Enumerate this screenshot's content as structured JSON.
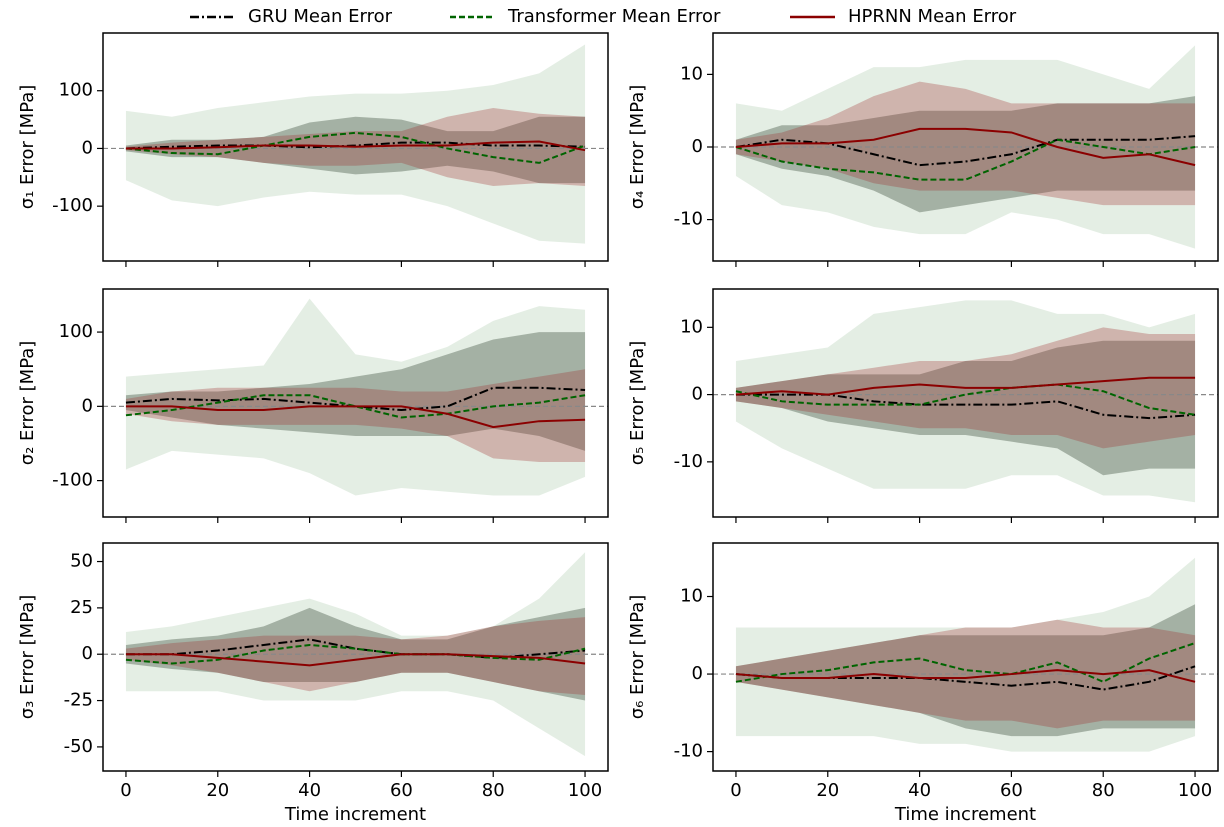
{
  "chart_data": [
    {
      "type": "line",
      "ylabel": "σ₁ Error [MPa]",
      "x": [
        0,
        10,
        20,
        30,
        40,
        50,
        60,
        70,
        80,
        90,
        100
      ],
      "xlim": [
        -5,
        105
      ],
      "xticks": [
        0,
        20,
        40,
        60,
        80,
        100
      ],
      "show_xtick_labels": false,
      "ylim": [
        -195,
        200
      ],
      "yticks": [
        -100,
        0,
        100
      ],
      "hline": 0,
      "series": [
        {
          "name": "GRU Mean Error",
          "color": "#000000",
          "dash": "dashdot",
          "band_color": "#2f3f2f",
          "band_alpha": 0.35,
          "values": [
            0,
            3,
            5,
            5,
            2,
            5,
            10,
            10,
            5,
            5,
            3
          ],
          "lower": [
            -5,
            -15,
            -15,
            -25,
            -35,
            -45,
            -40,
            -30,
            -40,
            -60,
            -60
          ],
          "upper": [
            5,
            15,
            15,
            20,
            45,
            55,
            50,
            30,
            30,
            55,
            55
          ]
        },
        {
          "name": "Transformer Mean Error",
          "color": "#006400",
          "dash": "dashed",
          "band_color": "#2e7d32",
          "band_alpha": 0.13,
          "values": [
            0,
            -8,
            -10,
            5,
            20,
            27,
            20,
            0,
            -15,
            -25,
            5
          ],
          "lower": [
            -55,
            -90,
            -100,
            -85,
            -75,
            -80,
            -80,
            -100,
            -130,
            -160,
            -165
          ],
          "upper": [
            65,
            55,
            70,
            80,
            90,
            95,
            95,
            100,
            110,
            130,
            180
          ]
        },
        {
          "name": "HPRNN Mean Error",
          "color": "#8b0000",
          "dash": "solid",
          "band_color": "#a03030",
          "band_alpha": 0.3,
          "values": [
            0,
            0,
            2,
            5,
            5,
            3,
            5,
            5,
            10,
            12,
            -3
          ],
          "lower": [
            -3,
            -10,
            -15,
            -25,
            -30,
            -30,
            -25,
            -50,
            -65,
            -60,
            -65
          ],
          "upper": [
            3,
            10,
            15,
            20,
            25,
            30,
            30,
            55,
            70,
            60,
            55
          ]
        }
      ]
    },
    {
      "type": "line",
      "ylabel": "σ₂ Error [MPa]",
      "x": [
        0,
        10,
        20,
        30,
        40,
        50,
        60,
        70,
        80,
        90,
        100
      ],
      "xlim": [
        -5,
        105
      ],
      "xticks": [
        0,
        20,
        40,
        60,
        80,
        100
      ],
      "show_xtick_labels": false,
      "ylim": [
        -149,
        158
      ],
      "yticks": [
        -100,
        0,
        100
      ],
      "hline": 0,
      "series": [
        {
          "name": "GRU Mean Error",
          "color": "#000000",
          "dash": "dashdot",
          "band_color": "#2f3f2f",
          "band_alpha": 0.35,
          "values": [
            5,
            10,
            8,
            10,
            5,
            0,
            -5,
            0,
            25,
            25,
            22
          ],
          "lower": [
            -5,
            -15,
            -25,
            -30,
            -35,
            -40,
            -40,
            -40,
            -30,
            -40,
            -60
          ],
          "upper": [
            15,
            20,
            20,
            25,
            30,
            40,
            50,
            70,
            90,
            100,
            100
          ]
        },
        {
          "name": "Transformer Mean Error",
          "color": "#006400",
          "dash": "dashed",
          "band_color": "#2e7d32",
          "band_alpha": 0.13,
          "values": [
            -12,
            -5,
            5,
            15,
            15,
            0,
            -15,
            -10,
            0,
            5,
            15
          ],
          "lower": [
            -85,
            -60,
            -65,
            -70,
            -90,
            -120,
            -110,
            -115,
            -120,
            -120,
            -95
          ],
          "upper": [
            40,
            45,
            50,
            55,
            145,
            70,
            60,
            80,
            115,
            135,
            130
          ]
        },
        {
          "name": "HPRNN Mean Error",
          "color": "#8b0000",
          "dash": "solid",
          "band_color": "#a03030",
          "band_alpha": 0.3,
          "values": [
            0,
            0,
            -5,
            -5,
            0,
            0,
            0,
            -10,
            -28,
            -20,
            -18
          ],
          "lower": [
            -10,
            -20,
            -25,
            -25,
            -25,
            -25,
            -30,
            -40,
            -70,
            -75,
            -75
          ],
          "upper": [
            10,
            20,
            25,
            25,
            25,
            25,
            20,
            20,
            30,
            40,
            50
          ]
        }
      ]
    },
    {
      "type": "line",
      "ylabel": "σ₃ Error [MPa]",
      "xlabel": "Time increment",
      "x": [
        0,
        10,
        20,
        30,
        40,
        50,
        60,
        70,
        80,
        90,
        100
      ],
      "xlim": [
        -5,
        105
      ],
      "xticks": [
        0,
        20,
        40,
        60,
        80,
        100
      ],
      "show_xtick_labels": true,
      "ylim": [
        -63,
        60
      ],
      "yticks": [
        -50,
        -25,
        0,
        25,
        50
      ],
      "hline": 0,
      "series": [
        {
          "name": "GRU Mean Error",
          "color": "#000000",
          "dash": "dashdot",
          "band_color": "#2f3f2f",
          "band_alpha": 0.35,
          "values": [
            0,
            0,
            2,
            5,
            8,
            3,
            0,
            0,
            -2,
            0,
            2
          ],
          "lower": [
            -5,
            -8,
            -10,
            -15,
            -15,
            -15,
            -10,
            -10,
            -15,
            -20,
            -25
          ],
          "upper": [
            5,
            8,
            10,
            15,
            25,
            15,
            8,
            8,
            15,
            20,
            25
          ]
        },
        {
          "name": "Transformer Mean Error",
          "color": "#006400",
          "dash": "dashed",
          "band_color": "#2e7d32",
          "band_alpha": 0.13,
          "values": [
            -3,
            -5,
            -3,
            2,
            5,
            3,
            0,
            0,
            -2,
            -3,
            3
          ],
          "lower": [
            -20,
            -20,
            -20,
            -25,
            -25,
            -25,
            -20,
            -20,
            -25,
            -40,
            -55
          ],
          "upper": [
            12,
            15,
            20,
            25,
            30,
            22,
            10,
            10,
            15,
            30,
            55
          ]
        },
        {
          "name": "HPRNN Mean Error",
          "color": "#8b0000",
          "dash": "solid",
          "band_color": "#a03030",
          "band_alpha": 0.3,
          "values": [
            0,
            0,
            -2,
            -4,
            -6,
            -3,
            0,
            0,
            -1,
            -2,
            -5
          ],
          "lower": [
            -3,
            -6,
            -10,
            -15,
            -20,
            -15,
            -10,
            -10,
            -15,
            -20,
            -22
          ],
          "upper": [
            3,
            6,
            8,
            10,
            10,
            10,
            8,
            10,
            15,
            18,
            20
          ]
        }
      ]
    },
    {
      "type": "line",
      "ylabel": "σ₄ Error [MPa]",
      "x": [
        0,
        10,
        20,
        30,
        40,
        50,
        60,
        70,
        80,
        90,
        100
      ],
      "xlim": [
        -5,
        105
      ],
      "xticks": [
        0,
        20,
        40,
        60,
        80,
        100
      ],
      "show_xtick_labels": false,
      "ylim": [
        -15.7,
        15.7
      ],
      "yticks": [
        -10,
        0,
        10
      ],
      "hline": 0,
      "series": [
        {
          "name": "GRU Mean Error",
          "color": "#000000",
          "dash": "dashdot",
          "band_color": "#2f3f2f",
          "band_alpha": 0.35,
          "values": [
            0,
            1,
            0.5,
            -1,
            -2.5,
            -2,
            -1,
            1,
            1,
            1,
            1.5
          ],
          "lower": [
            -1,
            -3,
            -4,
            -6,
            -9,
            -8,
            -7,
            -6,
            -6,
            -6,
            -6
          ],
          "upper": [
            1,
            3,
            3,
            4,
            5,
            5,
            5,
            6,
            6,
            6,
            7
          ]
        },
        {
          "name": "Transformer Mean Error",
          "color": "#006400",
          "dash": "dashed",
          "band_color": "#2e7d32",
          "band_alpha": 0.13,
          "values": [
            0,
            -2,
            -3,
            -3.5,
            -4.5,
            -4.5,
            -2,
            1,
            0,
            -1,
            0
          ],
          "lower": [
            -4,
            -8,
            -9,
            -11,
            -12,
            -12,
            -9,
            -10,
            -12,
            -12,
            -14
          ],
          "upper": [
            6,
            5,
            8,
            11,
            11,
            12,
            12,
            12,
            10,
            8,
            14
          ]
        },
        {
          "name": "HPRNN Mean Error",
          "color": "#8b0000",
          "dash": "solid",
          "band_color": "#a03030",
          "band_alpha": 0.3,
          "values": [
            0,
            0.5,
            0.5,
            1,
            2.5,
            2.5,
            2,
            0,
            -1.5,
            -1,
            -2.5
          ],
          "lower": [
            -1,
            -2,
            -3,
            -5,
            -6,
            -6,
            -6,
            -7,
            -8,
            -8,
            -8
          ],
          "upper": [
            1,
            2,
            4,
            7,
            9,
            8,
            6,
            6,
            6,
            6,
            6
          ]
        }
      ]
    },
    {
      "type": "line",
      "ylabel": "σ₅ Error [MPa]",
      "x": [
        0,
        10,
        20,
        30,
        40,
        50,
        60,
        70,
        80,
        90,
        100
      ],
      "xlim": [
        -5,
        105
      ],
      "xticks": [
        0,
        20,
        40,
        60,
        80,
        100
      ],
      "show_xtick_labels": false,
      "ylim": [
        -18.2,
        15.7
      ],
      "yticks": [
        -10,
        0,
        10
      ],
      "hline": 0,
      "series": [
        {
          "name": "GRU Mean Error",
          "color": "#000000",
          "dash": "dashdot",
          "band_color": "#2f3f2f",
          "band_alpha": 0.35,
          "values": [
            0,
            0,
            0,
            -1,
            -1.5,
            -1.5,
            -1.5,
            -1,
            -3,
            -3.5,
            -3
          ],
          "lower": [
            -1,
            -2,
            -4,
            -5,
            -6,
            -6,
            -7,
            -8,
            -12,
            -11,
            -11
          ],
          "upper": [
            1,
            2,
            3,
            3,
            3,
            5,
            5,
            7,
            8,
            8,
            8
          ]
        },
        {
          "name": "Transformer Mean Error",
          "color": "#006400",
          "dash": "dashed",
          "band_color": "#2e7d32",
          "band_alpha": 0.13,
          "values": [
            0.5,
            -1,
            -1.5,
            -1.5,
            -1.5,
            0,
            1,
            1.5,
            0.5,
            -2,
            -3
          ],
          "lower": [
            -4,
            -8,
            -11,
            -14,
            -14,
            -14,
            -12,
            -12,
            -15,
            -15,
            -16
          ],
          "upper": [
            5,
            6,
            7,
            12,
            13,
            14,
            14,
            12,
            12,
            10,
            12
          ]
        },
        {
          "name": "HPRNN Mean Error",
          "color": "#8b0000",
          "dash": "solid",
          "band_color": "#a03030",
          "band_alpha": 0.3,
          "values": [
            0,
            0.5,
            0,
            1,
            1.5,
            1,
            1,
            1.5,
            2,
            2.5,
            2.5
          ],
          "lower": [
            -1,
            -2,
            -3,
            -4,
            -5,
            -5,
            -6,
            -6,
            -8,
            -7,
            -6
          ],
          "upper": [
            1,
            2,
            3,
            4,
            5,
            5,
            6,
            8,
            10,
            9,
            9
          ]
        }
      ]
    },
    {
      "type": "line",
      "ylabel": "σ₆ Error [MPa]",
      "xlabel": "Time increment",
      "x": [
        0,
        10,
        20,
        30,
        40,
        50,
        60,
        70,
        80,
        90,
        100
      ],
      "xlim": [
        -5,
        105
      ],
      "xticks": [
        0,
        20,
        40,
        60,
        80,
        100
      ],
      "show_xtick_labels": true,
      "ylim": [
        -12.5,
        16.9
      ],
      "yticks": [
        -10,
        0,
        10
      ],
      "hline": 0,
      "series": [
        {
          "name": "GRU Mean Error",
          "color": "#000000",
          "dash": "dashdot",
          "band_color": "#2f3f2f",
          "band_alpha": 0.35,
          "values": [
            0,
            -0.5,
            -0.5,
            -0.5,
            -0.5,
            -1,
            -1.5,
            -1,
            -2,
            -1,
            1
          ],
          "lower": [
            -1,
            -2,
            -3,
            -4,
            -5,
            -7,
            -8,
            -8,
            -7,
            -7,
            -7
          ],
          "upper": [
            1,
            2,
            3,
            4,
            5,
            5,
            5,
            5,
            5,
            6,
            9
          ]
        },
        {
          "name": "Transformer Mean Error",
          "color": "#006400",
          "dash": "dashed",
          "band_color": "#2e7d32",
          "band_alpha": 0.13,
          "values": [
            -1,
            0,
            0.5,
            1.5,
            2,
            0.5,
            0,
            1.5,
            -1,
            2,
            4
          ],
          "lower": [
            -8,
            -8,
            -8,
            -8,
            -9,
            -9,
            -10,
            -10,
            -10,
            -10,
            -8
          ],
          "upper": [
            6,
            6,
            6,
            6,
            6,
            6,
            6,
            7,
            8,
            10,
            15
          ]
        },
        {
          "name": "HPRNN Mean Error",
          "color": "#8b0000",
          "dash": "solid",
          "band_color": "#a03030",
          "band_alpha": 0.3,
          "values": [
            0,
            -0.5,
            -0.5,
            0,
            -0.5,
            -0.5,
            0,
            0.5,
            0,
            0.5,
            -1
          ],
          "lower": [
            -1,
            -2,
            -3,
            -4,
            -5,
            -6,
            -6,
            -7,
            -6,
            -6,
            -6
          ],
          "upper": [
            1,
            2,
            3,
            4,
            5,
            6,
            6,
            7,
            6,
            6,
            5
          ]
        }
      ]
    }
  ]
}
